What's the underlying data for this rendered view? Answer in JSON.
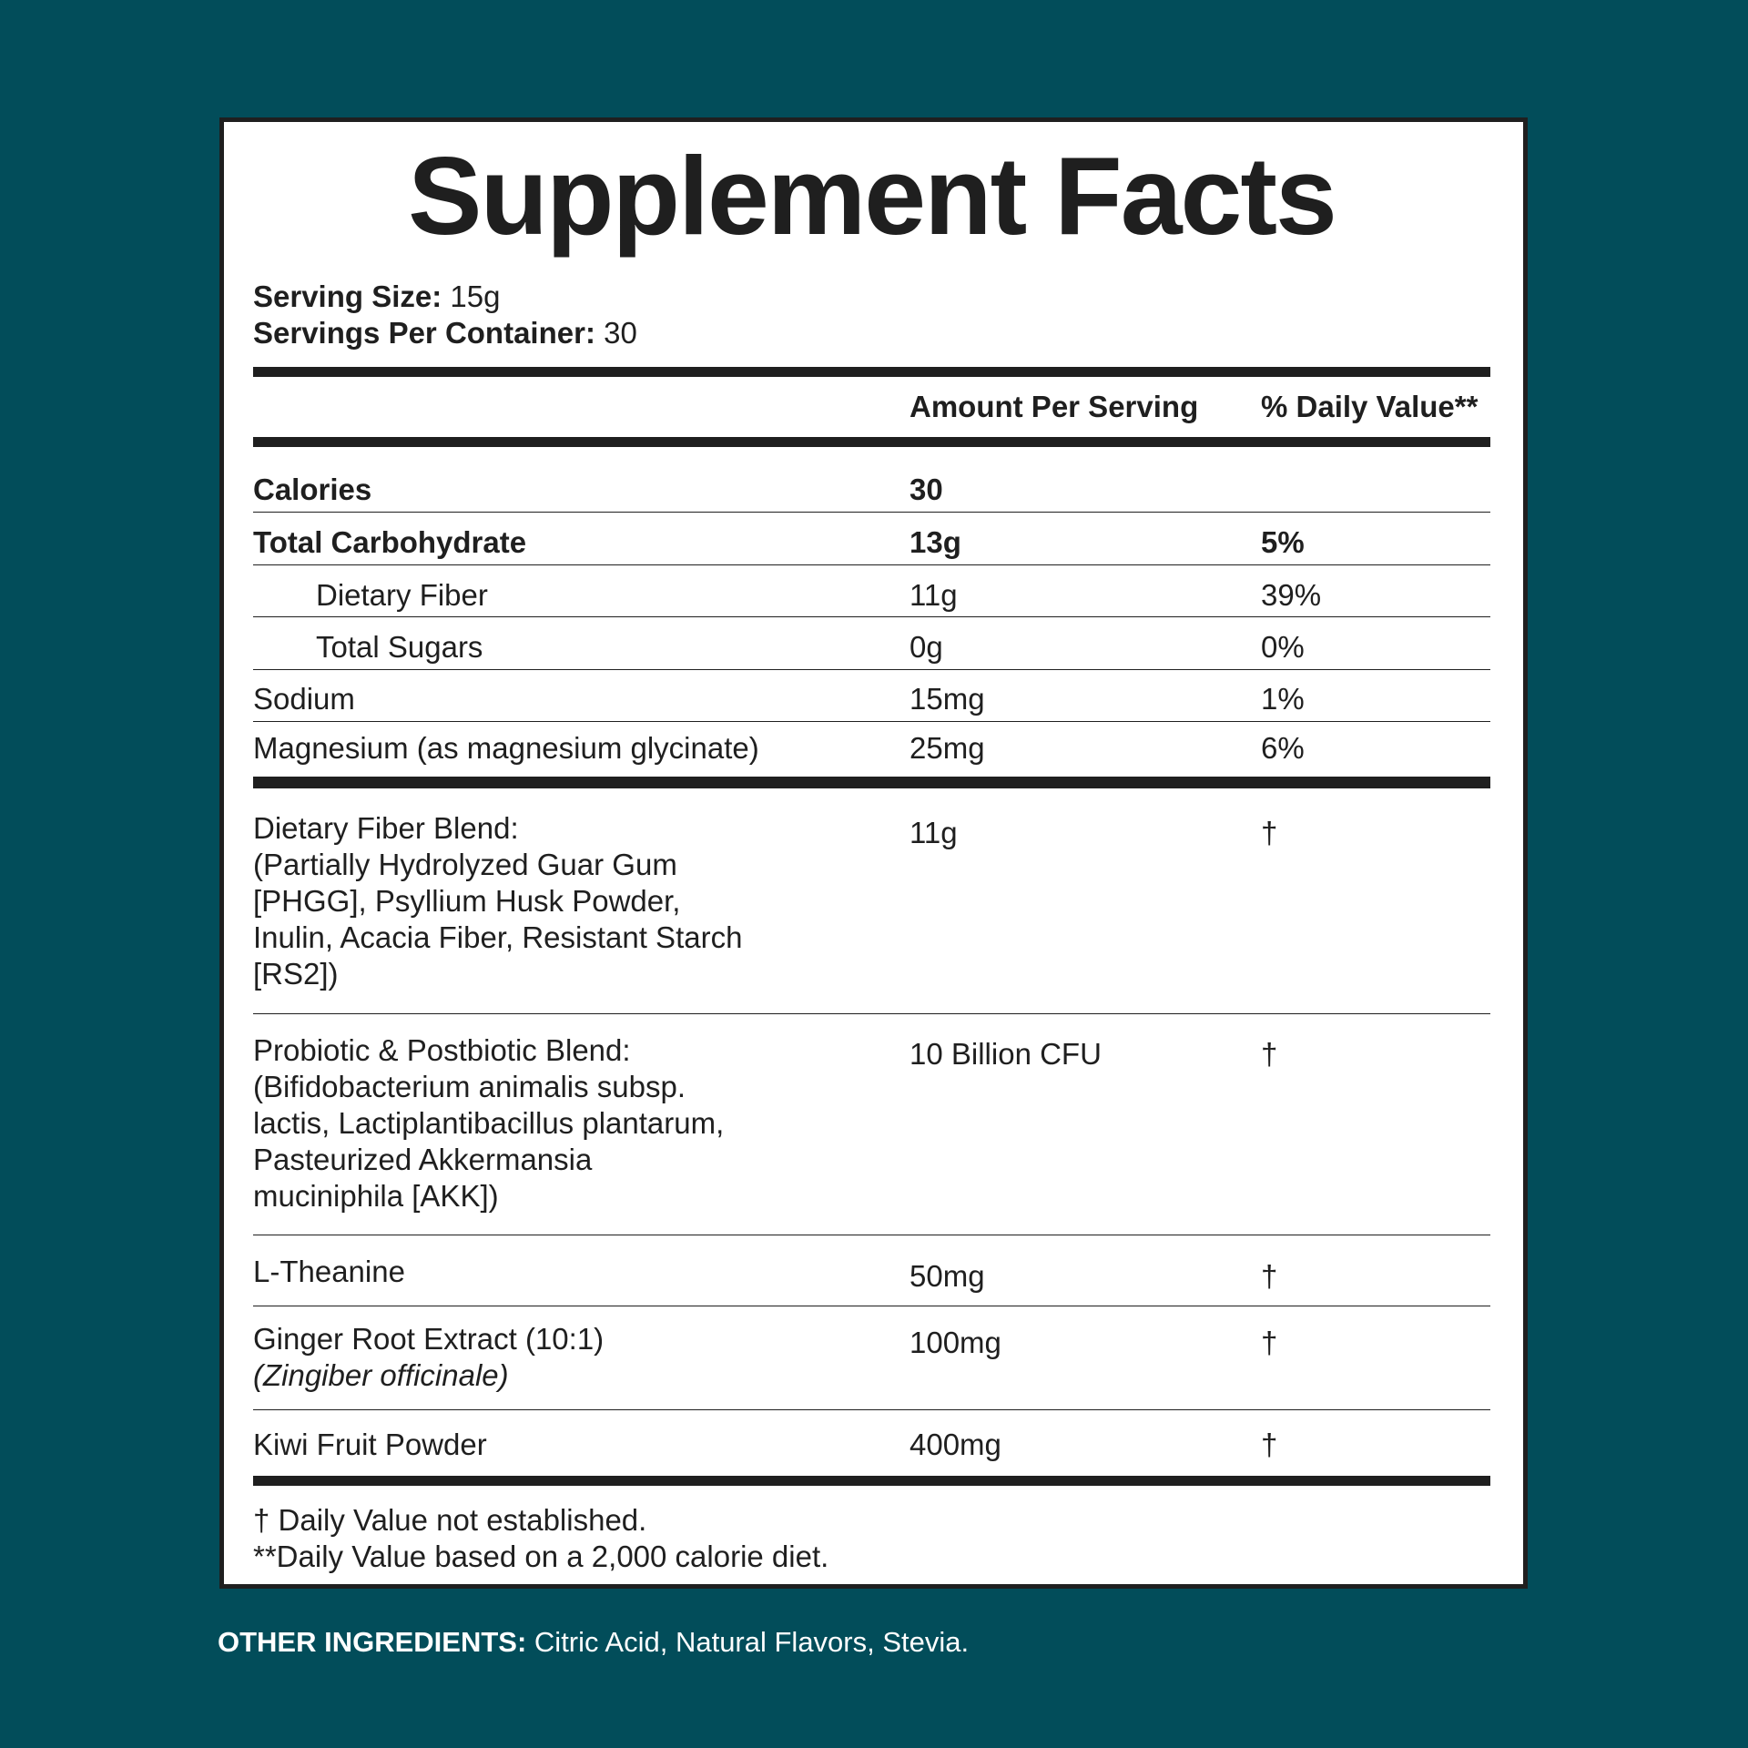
{
  "title": "Supplement Facts",
  "serving": {
    "size_label": "Serving Size:",
    "size_value": "15g",
    "per_container_label": "Servings Per Container:",
    "per_container_value": "30"
  },
  "header": {
    "amount": "Amount Per Serving",
    "daily_value": "% Daily Value**"
  },
  "nutrients": [
    {
      "name": "Calories",
      "amount": "30",
      "dv": ""
    },
    {
      "name": "Total Carbohydrate",
      "amount": "13g",
      "dv": "5%"
    },
    {
      "name": "Dietary Fiber",
      "amount": "11g",
      "dv": "39%"
    },
    {
      "name": "Total Sugars",
      "amount": "0g",
      "dv": "0%"
    },
    {
      "name": "Sodium",
      "amount": "15mg",
      "dv": "1%"
    },
    {
      "name": "Magnesium (as magnesium glycinate)",
      "amount": "25mg",
      "dv": "6%"
    }
  ],
  "blends": [
    {
      "lines": [
        "Dietary Fiber Blend:",
        "(Partially Hydrolyzed Guar Gum",
        "[PHGG], Psyllium Husk Powder,",
        "Inulin, Acacia Fiber, Resistant Starch",
        "[RS2])"
      ],
      "amount": "11g",
      "dv": "†"
    },
    {
      "lines": [
        "Probiotic & Postbiotic Blend:",
        "(Bifidobacterium animalis subsp.",
        "lactis, Lactiplantibacillus plantarum,",
        "Pasteurized Akkermansia",
        "muciniphila [AKK])"
      ],
      "amount": "10 Billion CFU",
      "dv": "†"
    },
    {
      "lines": [
        "L-Theanine"
      ],
      "amount": "50mg",
      "dv": "†"
    },
    {
      "lines": [
        "Ginger Root Extract (10:1)",
        "(Zingiber officinale)"
      ],
      "amount": "100mg",
      "dv": "†"
    },
    {
      "lines": [
        "Kiwi Fruit Powder"
      ],
      "amount": "400mg",
      "dv": "†"
    }
  ],
  "footnotes": [
    "† Daily Value not established.",
    "**Daily Value based on a 2,000 calorie diet."
  ],
  "other_ingredients": {
    "label": "OTHER INGREDIENTS:",
    "value": "Citric Acid, Natural Flavors, Stevia."
  },
  "colors": {
    "background": "#024d5a",
    "panel": "#ffffff",
    "ink": "#1f1f1f"
  }
}
